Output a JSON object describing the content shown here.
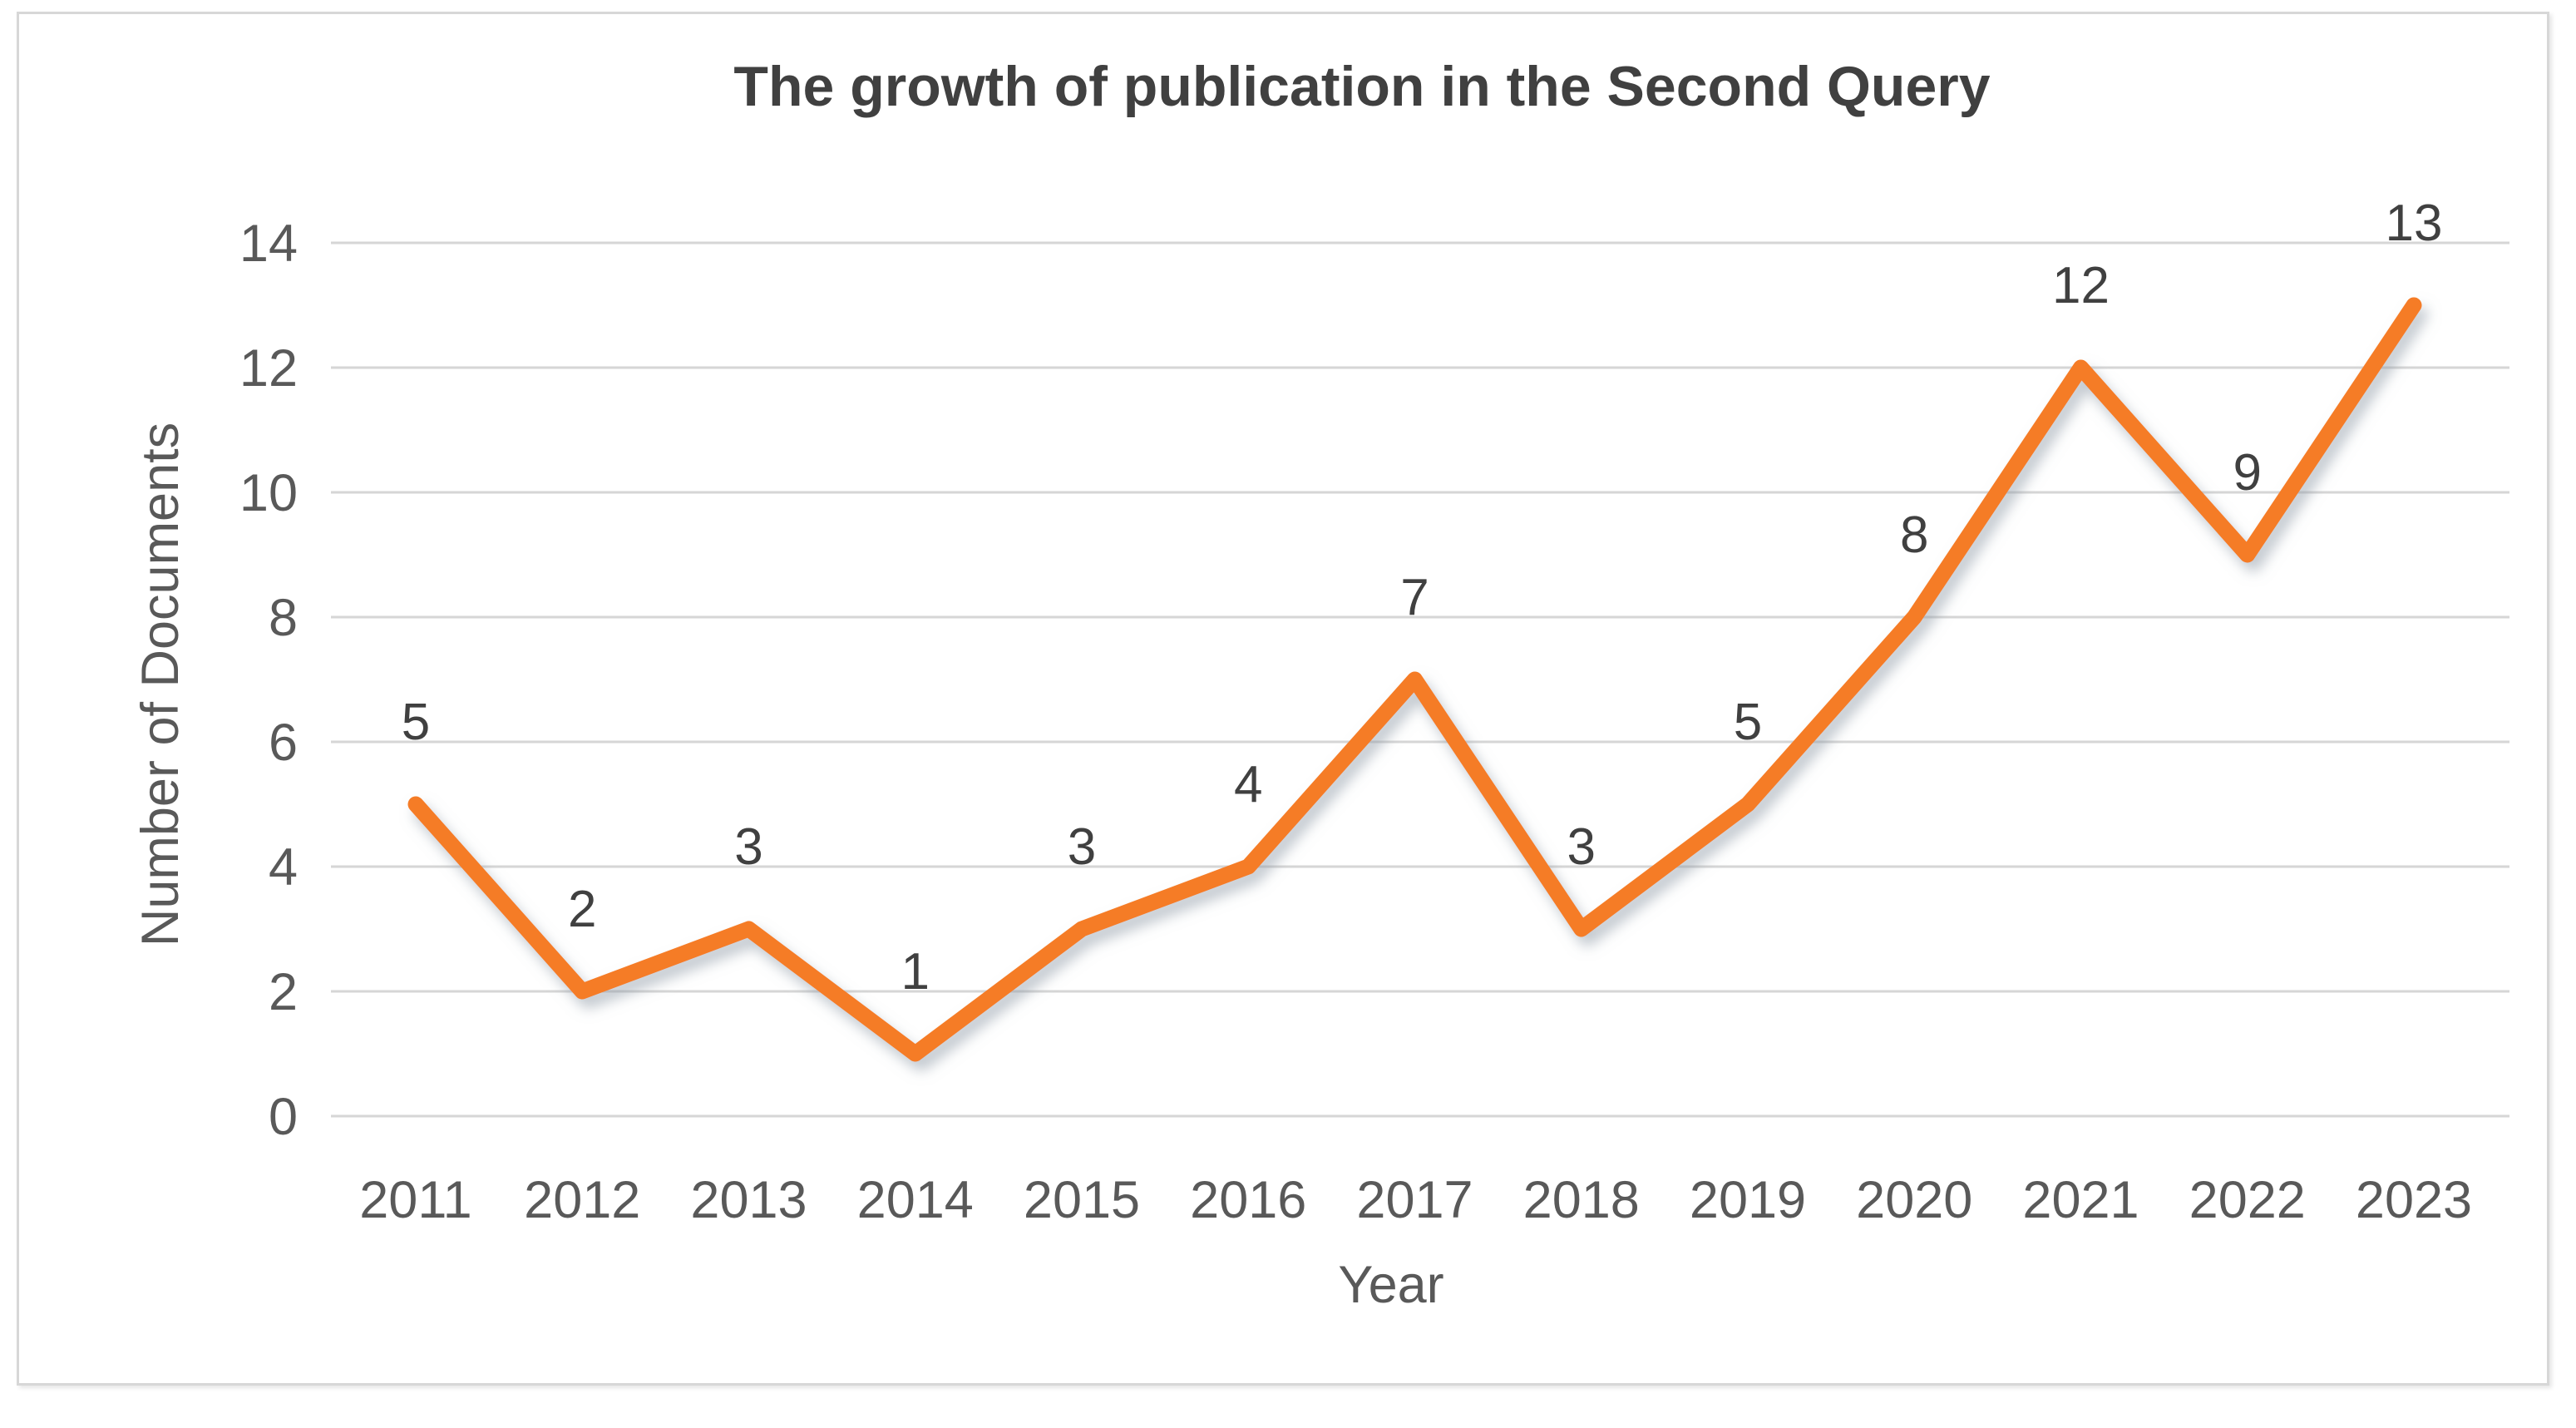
{
  "chart_data": {
    "type": "line",
    "title": "The growth of publication in the Second Query",
    "xlabel": "Year",
    "ylabel": "Number of Documents",
    "categories": [
      "2011",
      "2012",
      "2013",
      "2014",
      "2015",
      "2016",
      "2017",
      "2018",
      "2019",
      "2020",
      "2021",
      "2022",
      "2023"
    ],
    "values": [
      5,
      2,
      3,
      1,
      3,
      4,
      7,
      3,
      5,
      8,
      12,
      9,
      13
    ],
    "yticks": [
      0,
      2,
      4,
      6,
      8,
      10,
      12,
      14
    ],
    "ylim": [
      0,
      14
    ],
    "grid": true,
    "legend_position": "none",
    "data_labels_shown": true,
    "colors": {
      "line": "#F57C26",
      "gridline": "#D6D6D6",
      "axis_text": "#595959",
      "data_label": "#404040",
      "title": "#404040",
      "frame_border": "#D7D7D7"
    }
  }
}
